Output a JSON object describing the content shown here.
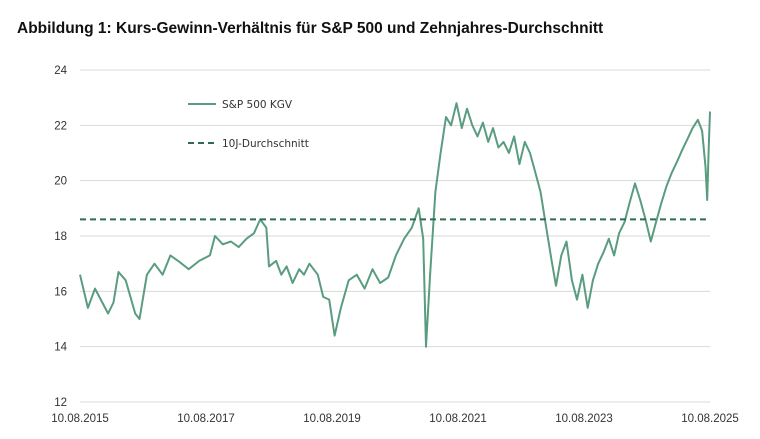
{
  "title": "Abbildung 1: Kurs-Gewinn-Verhältnis für S&P 500 und Zehnjahres-Durchschnitt",
  "chart_data": {
    "type": "line",
    "title": "Abbildung 1: Kurs-Gewinn-Verhältnis für S&P 500 und Zehnjahres-Durchschnitt",
    "xlabel": "",
    "ylabel": "",
    "xlim": [
      "2015-08-10",
      "2025-08-10"
    ],
    "ylim": [
      12,
      24
    ],
    "yticks": [
      12,
      14,
      16,
      18,
      20,
      22,
      24
    ],
    "xticks": [
      "10.08.2015",
      "10.08.2017",
      "10.08.2019",
      "10.08.2021",
      "10.08.2023",
      "10.08.2025"
    ],
    "grid": "horizontal",
    "legend_position": "top-left",
    "colors": {
      "series": "#5a9c7f",
      "average": "#2f6b50",
      "grid": "#d9d9d9"
    },
    "series": [
      {
        "name": "S&P 500 KGV",
        "style": "solid",
        "points": [
          [
            "2015-08-10",
            16.6
          ],
          [
            "2015-09-25",
            15.4
          ],
          [
            "2015-11-05",
            16.1
          ],
          [
            "2016-01-20",
            15.2
          ],
          [
            "2016-02-20",
            15.6
          ],
          [
            "2016-03-20",
            16.7
          ],
          [
            "2016-05-01",
            16.4
          ],
          [
            "2016-06-25",
            15.2
          ],
          [
            "2016-07-20",
            15.0
          ],
          [
            "2016-09-01",
            16.6
          ],
          [
            "2016-10-15",
            17.0
          ],
          [
            "2016-12-01",
            16.6
          ],
          [
            "2017-01-15",
            17.3
          ],
          [
            "2017-03-01",
            17.1
          ],
          [
            "2017-05-01",
            16.8
          ],
          [
            "2017-07-01",
            17.1
          ],
          [
            "2017-09-01",
            17.3
          ],
          [
            "2017-10-01",
            18.0
          ],
          [
            "2017-11-15",
            17.7
          ],
          [
            "2018-01-01",
            17.8
          ],
          [
            "2018-02-15",
            17.6
          ],
          [
            "2018-04-01",
            17.9
          ],
          [
            "2018-05-15",
            18.1
          ],
          [
            "2018-06-20",
            18.6
          ],
          [
            "2018-07-25",
            18.3
          ],
          [
            "2018-08-10",
            16.9
          ],
          [
            "2018-09-20",
            17.1
          ],
          [
            "2018-10-20",
            16.6
          ],
          [
            "2018-11-20",
            16.9
          ],
          [
            "2018-12-25",
            16.3
          ],
          [
            "2019-02-01",
            16.8
          ],
          [
            "2019-03-01",
            16.6
          ],
          [
            "2019-04-01",
            17.0
          ],
          [
            "2019-05-20",
            16.6
          ],
          [
            "2019-06-20",
            15.8
          ],
          [
            "2019-07-25",
            15.7
          ],
          [
            "2019-08-25",
            14.4
          ],
          [
            "2019-10-01",
            15.4
          ],
          [
            "2019-11-15",
            16.4
          ],
          [
            "2020-01-01",
            16.6
          ],
          [
            "2020-02-15",
            16.1
          ],
          [
            "2020-04-01",
            16.8
          ],
          [
            "2020-05-15",
            16.3
          ],
          [
            "2020-07-01",
            16.5
          ],
          [
            "2020-08-15",
            17.3
          ],
          [
            "2020-10-01",
            17.9
          ],
          [
            "2020-11-15",
            18.3
          ],
          [
            "2020-12-25",
            19.0
          ],
          [
            "2021-01-20",
            17.9
          ],
          [
            "2021-02-05",
            14.0
          ],
          [
            "2021-03-01",
            16.6
          ],
          [
            "2021-04-01",
            19.6
          ],
          [
            "2021-05-01",
            21.0
          ],
          [
            "2021-06-01",
            22.3
          ],
          [
            "2021-07-01",
            22.0
          ],
          [
            "2021-08-01",
            22.8
          ],
          [
            "2021-09-01",
            21.9
          ],
          [
            "2021-10-01",
            22.6
          ],
          [
            "2021-11-01",
            22.0
          ],
          [
            "2021-12-01",
            21.6
          ],
          [
            "2022-01-01",
            22.1
          ],
          [
            "2022-02-01",
            21.4
          ],
          [
            "2022-03-01",
            21.9
          ],
          [
            "2022-04-01",
            21.2
          ],
          [
            "2022-05-01",
            21.4
          ],
          [
            "2022-06-01",
            21.0
          ],
          [
            "2022-07-01",
            21.6
          ],
          [
            "2022-08-01",
            20.6
          ],
          [
            "2022-09-01",
            21.4
          ],
          [
            "2022-10-01",
            21.0
          ],
          [
            "2022-11-01",
            20.3
          ],
          [
            "2022-12-01",
            19.6
          ],
          [
            "2023-01-01",
            18.4
          ],
          [
            "2023-02-01",
            17.2
          ],
          [
            "2023-03-01",
            16.2
          ],
          [
            "2023-04-01",
            17.3
          ],
          [
            "2023-05-01",
            17.8
          ],
          [
            "2023-06-01",
            16.4
          ],
          [
            "2023-07-01",
            15.7
          ],
          [
            "2023-08-01",
            16.6
          ],
          [
            "2023-09-01",
            15.4
          ],
          [
            "2023-10-01",
            16.4
          ],
          [
            "2023-11-01",
            17.0
          ],
          [
            "2023-12-01",
            17.4
          ],
          [
            "2024-01-01",
            17.9
          ],
          [
            "2024-02-01",
            17.3
          ],
          [
            "2024-03-01",
            18.1
          ],
          [
            "2024-04-01",
            18.5
          ],
          [
            "2024-05-01",
            19.2
          ],
          [
            "2024-06-01",
            19.9
          ],
          [
            "2024-07-01",
            19.3
          ],
          [
            "2024-08-01",
            18.6
          ],
          [
            "2024-09-01",
            17.8
          ],
          [
            "2024-10-01",
            18.5
          ],
          [
            "2024-11-01",
            19.2
          ],
          [
            "2024-12-01",
            19.8
          ],
          [
            "2025-01-01",
            20.3
          ],
          [
            "2025-02-01",
            20.7
          ],
          [
            "2025-03-01",
            21.1
          ],
          [
            "2025-04-01",
            21.5
          ],
          [
            "2025-05-01",
            21.9
          ],
          [
            "2025-06-01",
            22.2
          ],
          [
            "2025-06-25",
            21.8
          ],
          [
            "2025-07-15",
            20.5
          ],
          [
            "2025-07-25",
            19.3
          ],
          [
            "2025-08-01",
            20.8
          ],
          [
            "2025-08-05",
            21.6
          ],
          [
            "2025-08-10",
            22.5
          ]
        ]
      },
      {
        "name": "10J-Durchschnitt",
        "style": "dashed",
        "points": [
          [
            "2015-08-10",
            18.6
          ],
          [
            "2025-08-10",
            18.6
          ]
        ]
      }
    ]
  }
}
